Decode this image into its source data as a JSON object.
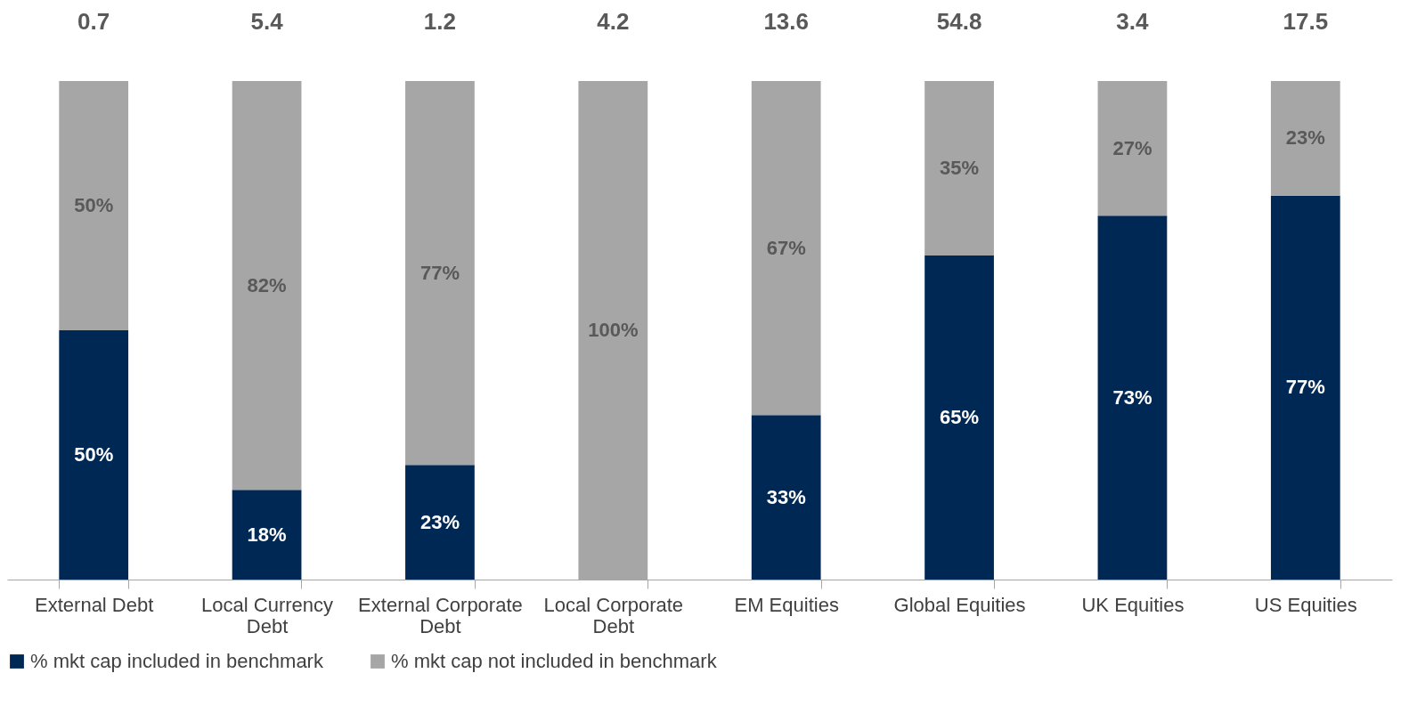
{
  "chart_data": {
    "type": "bar",
    "stacked": true,
    "categories": [
      "External Debt",
      "Local Currency Debt",
      "External Corporate Debt",
      "Local Corporate Debt",
      "EM Equities",
      "Global Equities",
      "UK Equities",
      "US Equities"
    ],
    "series": [
      {
        "name": "% mkt cap included in benchmark",
        "color": "#002855",
        "values": [
          50,
          18,
          23,
          0,
          33,
          65,
          73,
          77
        ],
        "value_labels": [
          "50%",
          "18%",
          "23%",
          null,
          "33%",
          "65%",
          "73%",
          "77%"
        ]
      },
      {
        "name": "% mkt cap not included in benchmark",
        "color": "#a6a6a6",
        "values": [
          50,
          82,
          77,
          100,
          67,
          35,
          27,
          23
        ],
        "value_labels": [
          "50%",
          "82%",
          "77%",
          "100%",
          "67%",
          "35%",
          "27%",
          "23%"
        ]
      }
    ],
    "annotations": [
      "0.7",
      "5.4",
      "1.2",
      "4.2",
      "13.6",
      "54.8",
      "3.4",
      "17.5"
    ],
    "legend": "bottom",
    "grid": false
  }
}
